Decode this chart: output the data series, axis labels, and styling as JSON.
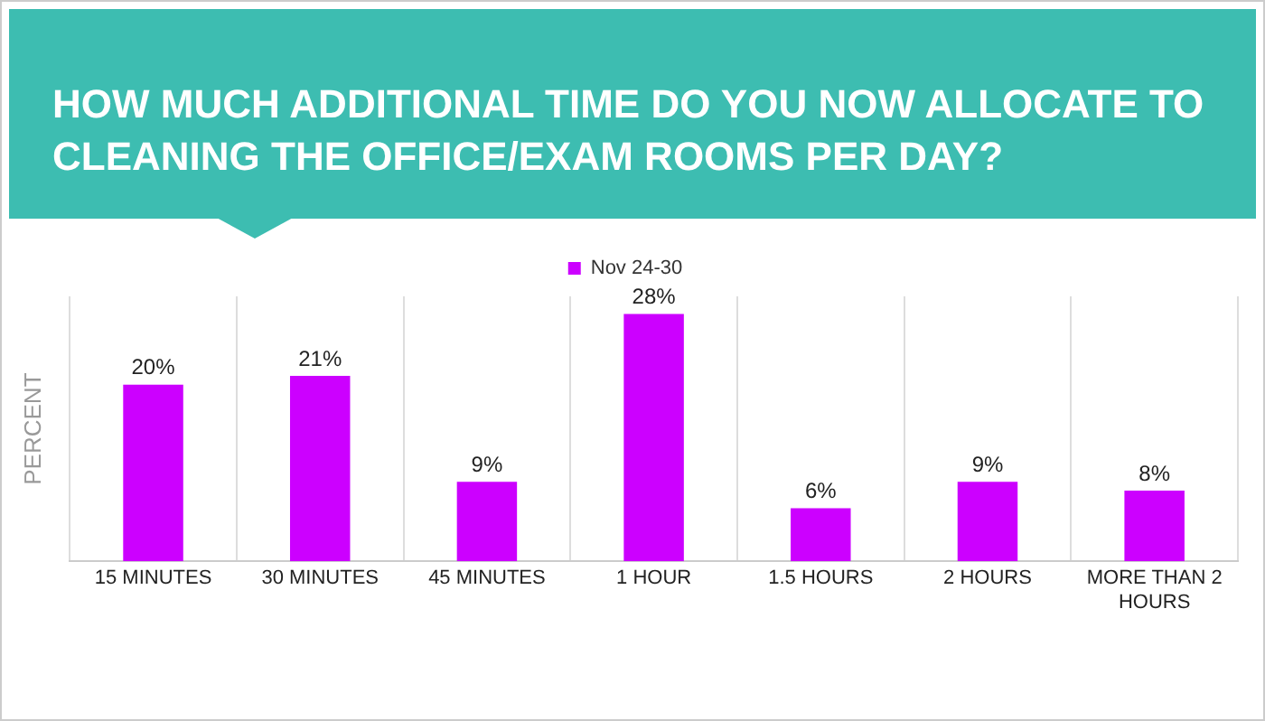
{
  "chart_data": {
    "type": "bar",
    "title": "HOW MUCH ADDITIONAL TIME DO YOU NOW ALLOCATE TO CLEANING THE OFFICE/EXAM ROOMS PER DAY?",
    "ylabel": "PERCENT",
    "tick_labels": "x",
    "categories": [
      "15 MINUTES",
      "30 MINUTES",
      "45 MINUTES",
      "1 HOUR",
      "1.5 HOURS",
      "2 HOURS",
      "MORE THAN 2 HOURS"
    ],
    "series": [
      {
        "name": "Nov 24-30",
        "color": "#cc00ff",
        "values": [
          20,
          21,
          9,
          28,
          6,
          9,
          8
        ],
        "value_labels": [
          "20%",
          "21%",
          "9%",
          "28%",
          "6%",
          "9%",
          "8%"
        ]
      }
    ],
    "grid": "x",
    "legend": "top"
  }
}
